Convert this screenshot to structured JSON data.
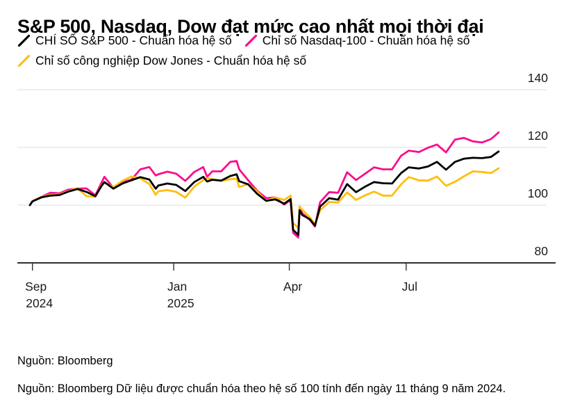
{
  "title": "S&P 500, Nasdaq, Dow đạt mức cao nhất mọi thời đại",
  "legend": {
    "items": [
      {
        "label": "CHÍ SỐ S&P 500 - Chuẩn hóa hệ số",
        "color": "#000000"
      },
      {
        "label": "Chỉ số Nasdaq-100 - Chuẩn hóa hệ số",
        "color": "#FA0D8C"
      },
      {
        "label": "Chỉ số công nghiệp Dow Jones - Chuẩn hóa hệ số",
        "color": "#FFBE0D"
      }
    ]
  },
  "footer": {
    "source_line": "Nguồn: Bloomberg",
    "note_line": "Nguồn: Bloomberg Dữ liệu được chuẩn hóa theo hệ số 100 tính đến ngày 11 tháng 9 năm 2024."
  },
  "chart_data": {
    "type": "line",
    "title": "S&P 500, Nasdaq, Dow đạt mức cao nhất mọi thời đại",
    "xlabel": "",
    "ylabel": "",
    "ylim": [
      80,
      141
    ],
    "y_ticks": [
      80,
      100,
      120,
      140
    ],
    "grid": "horizontal",
    "legend_position": "top",
    "colors": {
      "grid": "#E4E4E4",
      "axis": "#2F2F33"
    },
    "x_ticks": [
      {
        "label": "Sep",
        "year": "2024",
        "date": "2024-09-13"
      },
      {
        "label": "Jan",
        "year": "2025",
        "date": "2025-01-01"
      },
      {
        "label": "Apr",
        "year": "",
        "date": "2025-04-01"
      },
      {
        "label": "Jul",
        "year": "",
        "date": "2025-07-01"
      }
    ],
    "x": [
      "2024-09-11",
      "2024-09-13",
      "2024-09-20",
      "2024-09-27",
      "2024-10-04",
      "2024-10-11",
      "2024-10-18",
      "2024-10-25",
      "2024-11-01",
      "2024-11-06",
      "2024-11-08",
      "2024-11-15",
      "2024-11-22",
      "2024-11-29",
      "2024-12-06",
      "2024-12-13",
      "2024-12-18",
      "2024-12-20",
      "2024-12-27",
      "2025-01-03",
      "2025-01-10",
      "2025-01-17",
      "2025-01-24",
      "2025-01-27",
      "2025-01-31",
      "2025-02-07",
      "2025-02-14",
      "2025-02-19",
      "2025-02-21",
      "2025-02-28",
      "2025-03-07",
      "2025-03-14",
      "2025-03-21",
      "2025-03-28",
      "2025-04-02",
      "2025-04-04",
      "2025-04-08",
      "2025-04-09",
      "2025-04-11",
      "2025-04-17",
      "2025-04-21",
      "2025-04-25",
      "2025-05-02",
      "2025-05-09",
      "2025-05-16",
      "2025-05-23",
      "2025-05-30",
      "2025-06-06",
      "2025-06-13",
      "2025-06-20",
      "2025-06-27",
      "2025-07-03",
      "2025-07-11",
      "2025-07-18",
      "2025-07-25",
      "2025-08-01",
      "2025-08-08",
      "2025-08-15",
      "2025-08-22",
      "2025-08-29",
      "2025-09-05",
      "2025-09-11"
    ],
    "series": [
      {
        "name": "CHÍ SỐ S&P 500 - Chuẩn hóa hệ số",
        "color": "#000000",
        "values": [
          100.0,
          101.3,
          102.7,
          103.3,
          103.5,
          104.7,
          105.6,
          104.6,
          103.1,
          106.8,
          108.0,
          105.7,
          107.5,
          108.6,
          109.7,
          108.9,
          105.7,
          106.8,
          107.5,
          107.0,
          104.9,
          108.0,
          109.8,
          108.2,
          108.8,
          108.5,
          110.1,
          110.7,
          108.3,
          107.2,
          103.9,
          101.5,
          102.0,
          100.5,
          102.1,
          91.4,
          89.7,
          98.3,
          96.6,
          95.1,
          92.9,
          99.5,
          102.4,
          101.9,
          107.3,
          104.5,
          106.4,
          108.0,
          107.6,
          107.5,
          111.1,
          113.1,
          112.7,
          113.4,
          115.0,
          112.3,
          115.0,
          116.1,
          116.4,
          116.3,
          116.7,
          118.6
        ]
      },
      {
        "name": "Chỉ số Nasdaq-100 - Chuẩn hóa hệ số",
        "color": "#FA0D8C",
        "values": [
          100.0,
          101.4,
          102.9,
          104.3,
          104.1,
          105.4,
          105.7,
          105.8,
          103.4,
          108.0,
          109.8,
          106.0,
          108.0,
          108.8,
          112.4,
          113.2,
          110.3,
          110.7,
          111.6,
          110.9,
          108.4,
          111.5,
          113.2,
          109.8,
          111.7,
          111.7,
          115.0,
          115.3,
          112.4,
          108.6,
          105.0,
          102.4,
          102.7,
          100.2,
          101.8,
          90.4,
          88.8,
          99.5,
          97.2,
          94.9,
          92.6,
          101.0,
          104.5,
          104.3,
          111.4,
          108.7,
          110.9,
          113.1,
          112.4,
          112.4,
          117.1,
          118.9,
          118.4,
          119.9,
          121.0,
          118.3,
          122.7,
          123.3,
          122.1,
          121.7,
          122.9,
          125.2
        ]
      },
      {
        "name": "Chỉ số công nghiệp Dow Jones - Chuẩn hóa hệ số",
        "color": "#FFBE0D",
        "values": [
          100.0,
          101.3,
          102.9,
          103.6,
          103.7,
          104.9,
          105.9,
          103.1,
          102.9,
          107.0,
          107.7,
          106.3,
          108.4,
          109.9,
          109.3,
          107.3,
          103.6,
          104.8,
          105.2,
          104.6,
          102.6,
          106.4,
          108.7,
          109.4,
          109.0,
          108.4,
          109.0,
          109.2,
          106.3,
          107.3,
          104.7,
          101.5,
          102.7,
          101.8,
          103.3,
          93.8,
          92.1,
          99.4,
          98.4,
          95.8,
          93.4,
          98.2,
          101.1,
          100.9,
          104.4,
          101.8,
          103.4,
          104.7,
          103.3,
          103.3,
          107.2,
          109.7,
          108.6,
          108.5,
          109.9,
          106.7,
          108.1,
          110.0,
          111.7,
          111.5,
          111.1,
          112.8
        ]
      }
    ]
  }
}
